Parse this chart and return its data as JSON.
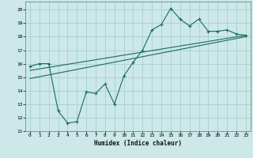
{
  "title": "",
  "xlabel": "Humidex (Indice chaleur)",
  "ylabel": "",
  "bg_color": "#cce8e8",
  "grid_color": "#aacfcf",
  "line_color": "#1a6b5a",
  "xlim": [
    -0.5,
    23.5
  ],
  "ylim": [
    11,
    20.6
  ],
  "yticks": [
    11,
    12,
    13,
    14,
    15,
    16,
    17,
    18,
    19,
    20
  ],
  "xticks": [
    0,
    1,
    2,
    3,
    4,
    5,
    6,
    7,
    8,
    9,
    10,
    11,
    12,
    13,
    14,
    15,
    16,
    17,
    18,
    19,
    20,
    21,
    22,
    23
  ],
  "line1_x": [
    0,
    1,
    2,
    3,
    4,
    5,
    6,
    7,
    8,
    9,
    10,
    11,
    12,
    13,
    14,
    15,
    16,
    17,
    18,
    19,
    20,
    21,
    22,
    23
  ],
  "line1_y": [
    15.8,
    16.0,
    16.0,
    12.5,
    11.6,
    11.7,
    13.9,
    13.8,
    14.5,
    13.0,
    15.1,
    16.1,
    17.0,
    18.5,
    18.9,
    20.1,
    19.3,
    18.8,
    19.3,
    18.4,
    18.4,
    18.5,
    18.2,
    18.1
  ],
  "line2_x": [
    0,
    23
  ],
  "line2_y": [
    15.5,
    18.1
  ],
  "line3_x": [
    0,
    23
  ],
  "line3_y": [
    14.9,
    18.0
  ],
  "figsize": [
    3.2,
    2.0
  ],
  "dpi": 100
}
